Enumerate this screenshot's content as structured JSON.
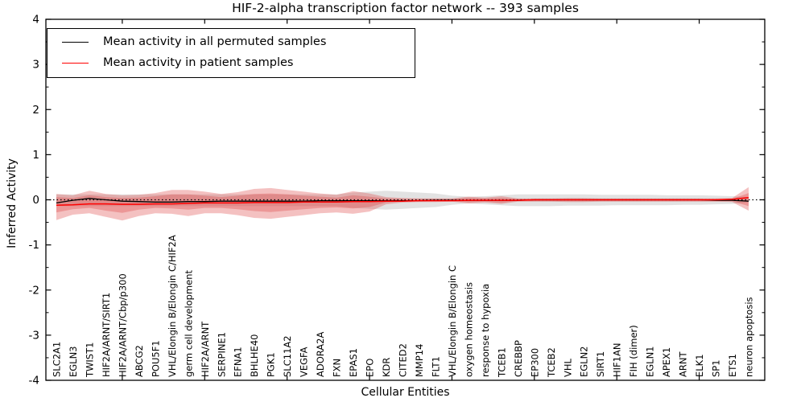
{
  "title": "HIF-2-alpha transcription factor network -- 393 samples",
  "axes": {
    "ylabel": "Inferred Activity",
    "xlabel": "Cellular Entities",
    "y_ticks": [
      -4,
      -3,
      -2,
      -1,
      0,
      1,
      2,
      3,
      4
    ],
    "y_minor_step": 0.5,
    "x_major_tick_every": 5
  },
  "legend": {
    "position": "upper left",
    "items": [
      {
        "label": "Mean activity in all permuted samples",
        "color": "#000000"
      },
      {
        "label": "Mean activity in patient samples",
        "color": "#ff0000"
      }
    ]
  },
  "chart_data": {
    "type": "line",
    "title": "HIF-2-alpha transcription factor network -- 393 samples",
    "xlabel": "Cellular Entities",
    "ylabel": "Inferred Activity",
    "ylim": [
      -4,
      4
    ],
    "grid": false,
    "legend_position": "upper left",
    "zero_line": {
      "style": "dotted",
      "color": "#000000",
      "y": 0
    },
    "categories": [
      "SLC2A1",
      "EGLN3",
      "TWIST1",
      "HIF2A/ARNT/SIRT1",
      "HIF2A/ARNT/Cbp/p300",
      "ABCG2",
      "POU5F1",
      "VHL/Elongin B/Elongin C/HIF2A",
      "germ cell development",
      "HIF2A/ARNT",
      "SERPINE1",
      "EFNA1",
      "BHLHE40",
      "PGK1",
      "SLC11A2",
      "VEGFA",
      "ADORA2A",
      "FXN",
      "EPAS1",
      "EPO",
      "KDR",
      "CITED2",
      "MMP14",
      "FLT1",
      "VHL/Elongin B/Elongin C",
      "oxygen homeostasis",
      "response to hypoxia",
      "TCEB1",
      "CREBBP",
      "EP300",
      "TCEB2",
      "VHL",
      "EGLN2",
      "SIRT1",
      "HIF1AN",
      "FIH (dimer)",
      "EGLN1",
      "APEX1",
      "ARNT",
      "ELK1",
      "SP1",
      "ETS1",
      "neuron apoptosis"
    ],
    "series": [
      {
        "name": "Mean activity in all permuted samples",
        "color": "#000000",
        "width": 1.3,
        "values": [
          -0.07,
          -0.01,
          0.03,
          0.0,
          -0.03,
          -0.04,
          -0.05,
          -0.05,
          -0.04,
          -0.04,
          -0.03,
          -0.03,
          -0.03,
          -0.03,
          -0.03,
          -0.03,
          -0.02,
          -0.02,
          -0.02,
          -0.02,
          -0.02,
          -0.02,
          -0.02,
          -0.01,
          -0.01,
          -0.01,
          -0.01,
          -0.01,
          -0.01,
          0.0,
          0.0,
          0.0,
          0.0,
          0.0,
          0.0,
          0.0,
          0.0,
          0.0,
          0.0,
          0.0,
          -0.01,
          -0.01,
          -0.03
        ]
      },
      {
        "name": "Mean activity in patient samples",
        "color": "#ff0000",
        "width": 1.5,
        "values": [
          -0.12,
          -0.11,
          -0.09,
          -0.09,
          -0.1,
          -0.1,
          -0.09,
          -0.09,
          -0.08,
          -0.07,
          -0.07,
          -0.07,
          -0.06,
          -0.06,
          -0.06,
          -0.05,
          -0.05,
          -0.05,
          -0.04,
          -0.04,
          -0.03,
          -0.03,
          -0.02,
          -0.02,
          -0.02,
          -0.01,
          -0.01,
          -0.01,
          -0.01,
          0.0,
          0.0,
          0.0,
          0.0,
          0.0,
          0.0,
          0.0,
          0.0,
          0.0,
          0.0,
          0.0,
          0.0,
          0.01,
          0.05
        ]
      }
    ],
    "bands": [
      {
        "name": "permuted-samples-band",
        "color": "#9e9e9e",
        "opacity": 0.3,
        "upper": [
          0.12,
          0.12,
          0.12,
          0.12,
          0.12,
          0.12,
          0.12,
          0.12,
          0.12,
          0.12,
          0.12,
          0.12,
          0.12,
          0.12,
          0.12,
          0.12,
          0.12,
          0.12,
          0.16,
          0.18,
          0.2,
          0.18,
          0.16,
          0.14,
          0.09,
          0.07,
          0.08,
          0.1,
          0.12,
          0.12,
          0.12,
          0.12,
          0.12,
          0.11,
          0.11,
          0.11,
          0.11,
          0.1,
          0.1,
          0.1,
          0.09,
          0.08,
          0.06
        ],
        "lower": [
          -0.14,
          -0.14,
          -0.14,
          -0.14,
          -0.14,
          -0.14,
          -0.14,
          -0.14,
          -0.14,
          -0.14,
          -0.14,
          -0.14,
          -0.14,
          -0.14,
          -0.14,
          -0.14,
          -0.14,
          -0.14,
          -0.18,
          -0.2,
          -0.22,
          -0.2,
          -0.18,
          -0.16,
          -0.11,
          -0.08,
          -0.1,
          -0.12,
          -0.14,
          -0.14,
          -0.14,
          -0.13,
          -0.13,
          -0.13,
          -0.12,
          -0.12,
          -0.12,
          -0.12,
          -0.11,
          -0.11,
          -0.1,
          -0.09,
          -0.06
        ]
      },
      {
        "name": "patient-samples-band-outer",
        "color": "#dd4444",
        "opacity": 0.33,
        "upper": [
          0.13,
          0.1,
          0.2,
          0.13,
          0.1,
          0.11,
          0.15,
          0.22,
          0.22,
          0.18,
          0.13,
          0.17,
          0.24,
          0.26,
          0.22,
          0.18,
          0.14,
          0.11,
          0.19,
          0.14,
          0.06,
          0.04,
          0.03,
          0.03,
          0.03,
          0.07,
          0.05,
          0.08,
          0.03,
          0.03,
          0.03,
          0.04,
          0.04,
          0.03,
          0.03,
          0.03,
          0.03,
          0.03,
          0.03,
          0.03,
          0.03,
          0.04,
          0.28
        ],
        "lower": [
          -0.45,
          -0.33,
          -0.3,
          -0.38,
          -0.46,
          -0.36,
          -0.3,
          -0.31,
          -0.36,
          -0.3,
          -0.3,
          -0.34,
          -0.4,
          -0.42,
          -0.38,
          -0.34,
          -0.3,
          -0.28,
          -0.31,
          -0.26,
          -0.1,
          -0.06,
          -0.05,
          -0.05,
          -0.04,
          -0.08,
          -0.06,
          -0.09,
          -0.04,
          -0.04,
          -0.04,
          -0.05,
          -0.05,
          -0.04,
          -0.04,
          -0.04,
          -0.04,
          -0.04,
          -0.04,
          -0.04,
          -0.04,
          -0.05,
          -0.24
        ]
      },
      {
        "name": "patient-samples-band-inner",
        "color": "#dd4444",
        "opacity": 0.33,
        "upper": [
          0.06,
          0.04,
          0.1,
          0.06,
          0.04,
          0.05,
          0.08,
          0.12,
          0.12,
          0.09,
          0.06,
          0.09,
          0.13,
          0.14,
          0.12,
          0.09,
          0.07,
          0.05,
          0.1,
          0.07,
          0.03,
          0.02,
          0.02,
          0.02,
          0.02,
          0.04,
          0.03,
          0.04,
          0.02,
          0.02,
          0.02,
          0.02,
          0.02,
          0.02,
          0.02,
          0.02,
          0.02,
          0.02,
          0.02,
          0.02,
          0.02,
          0.02,
          0.15
        ],
        "lower": [
          -0.28,
          -0.21,
          -0.18,
          -0.24,
          -0.29,
          -0.22,
          -0.18,
          -0.19,
          -0.22,
          -0.18,
          -0.18,
          -0.21,
          -0.25,
          -0.27,
          -0.24,
          -0.21,
          -0.18,
          -0.17,
          -0.19,
          -0.16,
          -0.06,
          -0.04,
          -0.03,
          -0.03,
          -0.03,
          -0.05,
          -0.04,
          -0.06,
          -0.03,
          -0.03,
          -0.03,
          -0.03,
          -0.03,
          -0.03,
          -0.03,
          -0.03,
          -0.03,
          -0.03,
          -0.03,
          -0.03,
          -0.03,
          -0.03,
          -0.14
        ]
      }
    ]
  }
}
